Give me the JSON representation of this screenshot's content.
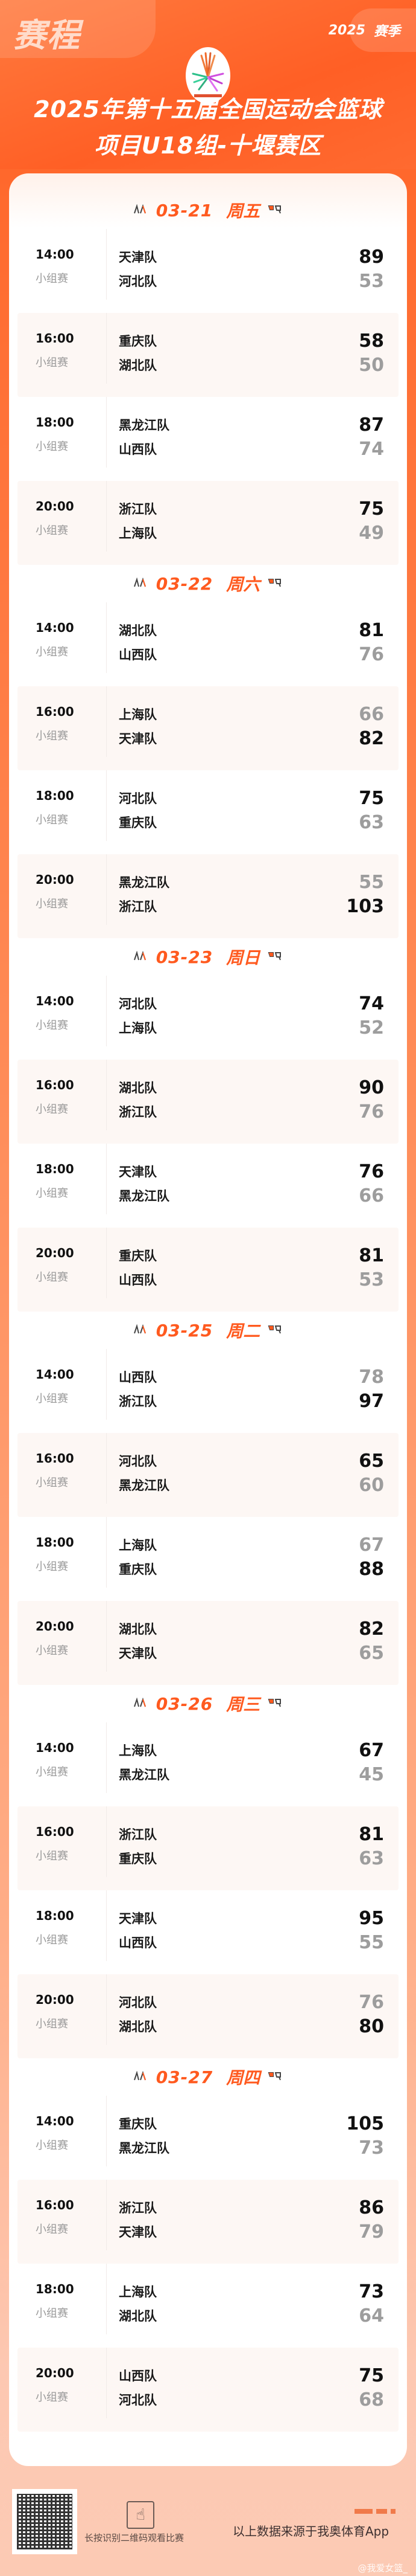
{
  "header": {
    "tab_label": "赛程",
    "season_year": "2025",
    "season_label": "赛季",
    "title_line1": "2025年第十五届全国运动会篮球",
    "title_line2": "项目U18组-十堰赛区",
    "logo": "national-games-logo"
  },
  "colors": {
    "accent": "#ff5a1f",
    "winner": "#111111",
    "loser": "#9d9d9d"
  },
  "days": [
    {
      "date": "03-21",
      "weekday": "周五",
      "matches": [
        {
          "time": "14:00",
          "stage": "小组赛",
          "home": "天津队",
          "home_score": "89",
          "away": "河北队",
          "away_score": "53",
          "winner": "home"
        },
        {
          "time": "16:00",
          "stage": "小组赛",
          "home": "重庆队",
          "home_score": "58",
          "away": "湖北队",
          "away_score": "50",
          "winner": "home"
        },
        {
          "time": "18:00",
          "stage": "小组赛",
          "home": "黑龙江队",
          "home_score": "87",
          "away": "山西队",
          "away_score": "74",
          "winner": "home"
        },
        {
          "time": "20:00",
          "stage": "小组赛",
          "home": "浙江队",
          "home_score": "75",
          "away": "上海队",
          "away_score": "49",
          "winner": "home"
        }
      ]
    },
    {
      "date": "03-22",
      "weekday": "周六",
      "matches": [
        {
          "time": "14:00",
          "stage": "小组赛",
          "home": "湖北队",
          "home_score": "81",
          "away": "山西队",
          "away_score": "76",
          "winner": "home"
        },
        {
          "time": "16:00",
          "stage": "小组赛",
          "home": "上海队",
          "home_score": "66",
          "away": "天津队",
          "away_score": "82",
          "winner": "away"
        },
        {
          "time": "18:00",
          "stage": "小组赛",
          "home": "河北队",
          "home_score": "75",
          "away": "重庆队",
          "away_score": "63",
          "winner": "home"
        },
        {
          "time": "20:00",
          "stage": "小组赛",
          "home": "黑龙江队",
          "home_score": "55",
          "away": "浙江队",
          "away_score": "103",
          "winner": "away"
        }
      ]
    },
    {
      "date": "03-23",
      "weekday": "周日",
      "matches": [
        {
          "time": "14:00",
          "stage": "小组赛",
          "home": "河北队",
          "home_score": "74",
          "away": "上海队",
          "away_score": "52",
          "winner": "home"
        },
        {
          "time": "16:00",
          "stage": "小组赛",
          "home": "湖北队",
          "home_score": "90",
          "away": "浙江队",
          "away_score": "76",
          "winner": "home"
        },
        {
          "time": "18:00",
          "stage": "小组赛",
          "home": "天津队",
          "home_score": "76",
          "away": "黑龙江队",
          "away_score": "66",
          "winner": "home"
        },
        {
          "time": "20:00",
          "stage": "小组赛",
          "home": "重庆队",
          "home_score": "81",
          "away": "山西队",
          "away_score": "53",
          "winner": "home"
        }
      ]
    },
    {
      "date": "03-25",
      "weekday": "周二",
      "matches": [
        {
          "time": "14:00",
          "stage": "小组赛",
          "home": "山西队",
          "home_score": "78",
          "away": "浙江队",
          "away_score": "97",
          "winner": "away"
        },
        {
          "time": "16:00",
          "stage": "小组赛",
          "home": "河北队",
          "home_score": "65",
          "away": "黑龙江队",
          "away_score": "60",
          "winner": "home"
        },
        {
          "time": "18:00",
          "stage": "小组赛",
          "home": "上海队",
          "home_score": "67",
          "away": "重庆队",
          "away_score": "88",
          "winner": "away"
        },
        {
          "time": "20:00",
          "stage": "小组赛",
          "home": "湖北队",
          "home_score": "82",
          "away": "天津队",
          "away_score": "65",
          "winner": "home"
        }
      ]
    },
    {
      "date": "03-26",
      "weekday": "周三",
      "matches": [
        {
          "time": "14:00",
          "stage": "小组赛",
          "home": "上海队",
          "home_score": "67",
          "away": "黑龙江队",
          "away_score": "45",
          "winner": "home"
        },
        {
          "time": "16:00",
          "stage": "小组赛",
          "home": "浙江队",
          "home_score": "81",
          "away": "重庆队",
          "away_score": "63",
          "winner": "home"
        },
        {
          "time": "18:00",
          "stage": "小组赛",
          "home": "天津队",
          "home_score": "95",
          "away": "山西队",
          "away_score": "55",
          "winner": "home"
        },
        {
          "time": "20:00",
          "stage": "小组赛",
          "home": "河北队",
          "home_score": "76",
          "away": "湖北队",
          "away_score": "80",
          "winner": "away"
        }
      ]
    },
    {
      "date": "03-27",
      "weekday": "周四",
      "matches": [
        {
          "time": "14:00",
          "stage": "小组赛",
          "home": "重庆队",
          "home_score": "105",
          "away": "黑龙江队",
          "away_score": "73",
          "winner": "home"
        },
        {
          "time": "16:00",
          "stage": "小组赛",
          "home": "浙江队",
          "home_score": "86",
          "away": "天津队",
          "away_score": "79",
          "winner": "home"
        },
        {
          "time": "18:00",
          "stage": "小组赛",
          "home": "上海队",
          "home_score": "73",
          "away": "湖北队",
          "away_score": "64",
          "winner": "home"
        },
        {
          "time": "20:00",
          "stage": "小组赛",
          "home": "山西队",
          "home_score": "75",
          "away": "河北队",
          "away_score": "68",
          "winner": "home"
        }
      ]
    }
  ],
  "footer": {
    "scan_text": "长按识别二维码观看比赛",
    "source_text": "以上数据来源于我奥体育App",
    "watermark": "@我爱女篮_",
    "qr_icon": "qr-code",
    "fingerprint_icon": "fingerprint"
  }
}
